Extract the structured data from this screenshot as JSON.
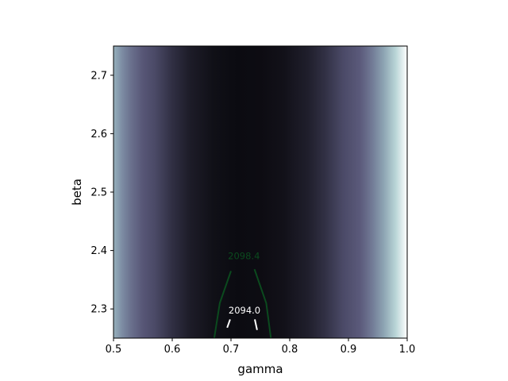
{
  "chart_data": {
    "type": "heatmap",
    "title": "",
    "xlabel": "gamma",
    "ylabel": "beta",
    "xlim": [
      0.5,
      1.0
    ],
    "ylim": [
      2.25,
      2.75
    ],
    "x_ticks": [
      0.5,
      0.6,
      0.7,
      0.8,
      0.9,
      1.0
    ],
    "x_tick_labels": [
      "0.5",
      "0.6",
      "0.7",
      "0.8",
      "0.9",
      "1.0"
    ],
    "y_ticks": [
      2.3,
      2.4,
      2.5,
      2.6,
      2.7
    ],
    "y_tick_labels": [
      "2.3",
      "2.4",
      "2.5",
      "2.6",
      "2.7"
    ],
    "colormap": "bone",
    "colormap_stops": [
      "#0b0b10",
      "#15141d",
      "#2c2b3e",
      "#4a4966",
      "#5c5b7c",
      "#7c8ba3",
      "#a9cbcd",
      "#ffffff"
    ],
    "field_min_gamma": 0.72,
    "contours": [
      {
        "level": 2098.4,
        "label": "2098.4",
        "color": "#0b4a1e",
        "label_color": "#0b4a1e",
        "segments": [
          [
            [
              0.6715,
              2.25
            ],
            [
              0.681,
              2.31
            ],
            [
              0.7,
              2.365
            ]
          ],
          [
            [
              0.74,
              2.368
            ],
            [
              0.76,
              2.31
            ],
            [
              0.768,
              2.25
            ]
          ]
        ],
        "label_at": [
          0.722,
          2.39
        ]
      },
      {
        "level": 2094.0,
        "label": "2094.0",
        "color": "#ffffff",
        "label_color": "#ffffff",
        "segments": [
          [
            [
              0.6935,
              2.268
            ],
            [
              0.6985,
              2.282
            ]
          ],
          [
            [
              0.7405,
              2.282
            ],
            [
              0.7445,
              2.264
            ]
          ]
        ],
        "label_at": [
          0.723,
          2.297
        ]
      }
    ],
    "grid": false,
    "legend": false,
    "colorbar": false
  }
}
